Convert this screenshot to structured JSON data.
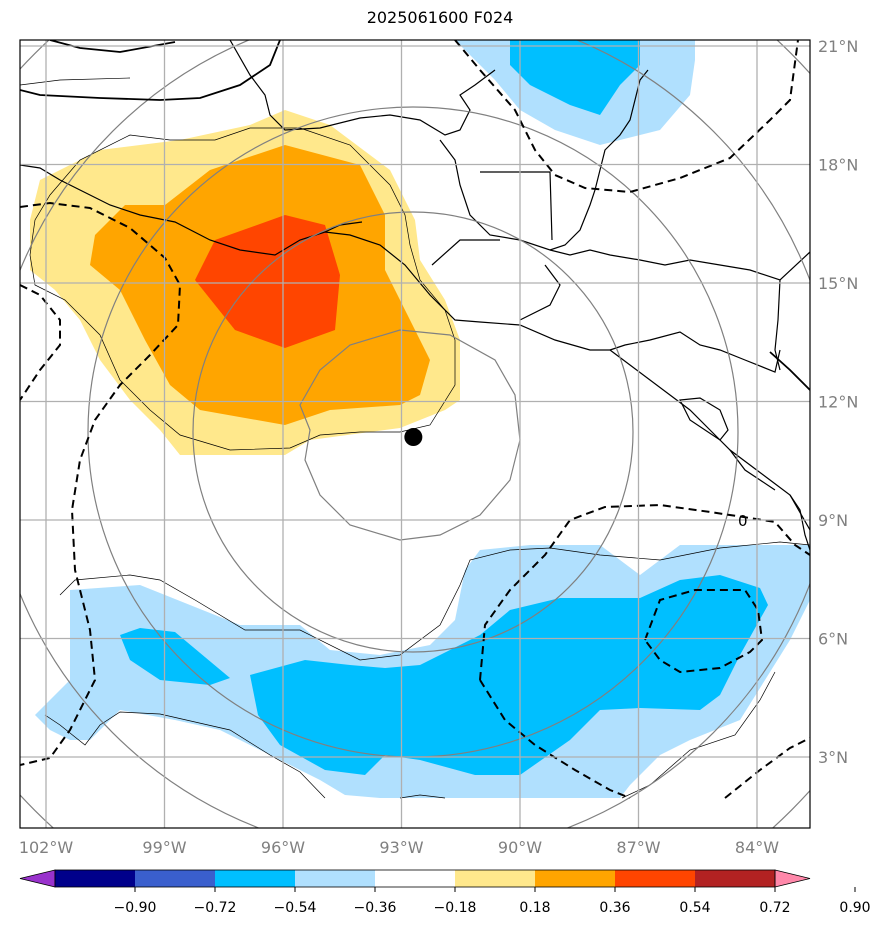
{
  "title": "2025061600 F024",
  "map": {
    "lon_ticks": [
      {
        "value": -102,
        "label": "102°W"
      },
      {
        "value": -99,
        "label": "99°W"
      },
      {
        "value": -96,
        "label": "96°W"
      },
      {
        "value": -93,
        "label": "93°W"
      },
      {
        "value": -90,
        "label": "90°W"
      },
      {
        "value": -87,
        "label": "87°W"
      },
      {
        "value": -84,
        "label": "84°W"
      }
    ],
    "lat_ticks": [
      {
        "value": 21,
        "label": "21°N"
      },
      {
        "value": 18,
        "label": "18°N"
      },
      {
        "value": 15,
        "label": "15°N"
      },
      {
        "value": 12,
        "label": "12°N"
      },
      {
        "value": 9,
        "label": "9°N"
      },
      {
        "value": 6,
        "label": "6°N"
      },
      {
        "value": 3,
        "label": "3°N"
      }
    ],
    "center_marker": {
      "lon": -92.7,
      "lat": 11.1
    },
    "contour_label": "0"
  },
  "colorbar": {
    "levels": [
      "−0.90",
      "−0.72",
      "−0.54",
      "−0.36",
      "−0.18",
      "0.18",
      "0.36",
      "0.54",
      "0.72",
      "0.90"
    ],
    "colors": [
      "#9932cc",
      "#00008b",
      "#3a5fcd",
      "#00bfff",
      "#b0e0fe",
      "#ffffff",
      "#ffe88c",
      "#ffa500",
      "#ff4500",
      "#b22222",
      "#ff88aa"
    ]
  }
}
